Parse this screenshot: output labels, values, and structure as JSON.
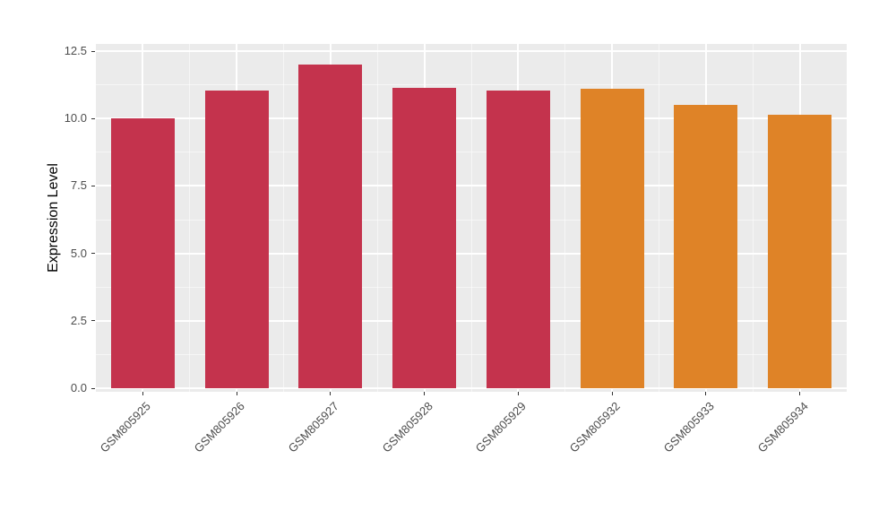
{
  "chart": {
    "panel_bg": "#EBEBEB",
    "grid_color": "#FFFFFF",
    "axis_text_color": "#4D4D4D",
    "red_accent": "#C4334D",
    "orange_accent": "#DF8327"
  },
  "chart_data": {
    "type": "bar",
    "title": "",
    "xlabel": "",
    "ylabel": "Expression Level",
    "categories": [
      "GSM805925",
      "GSM805926",
      "GSM805927",
      "GSM805928",
      "GSM805929",
      "GSM805932",
      "GSM805933",
      "GSM805934"
    ],
    "values": [
      10.0,
      11.05,
      12.0,
      11.15,
      11.05,
      11.1,
      10.5,
      10.15
    ],
    "bar_colors": [
      "#C4334D",
      "#C4334D",
      "#C4334D",
      "#C4334D",
      "#C4334D",
      "#DF8327",
      "#DF8327",
      "#DF8327"
    ],
    "ylim": [
      0,
      12.5
    ],
    "yticks": [
      0.0,
      2.5,
      5.0,
      7.5,
      10.0,
      12.5
    ],
    "ytick_labels": [
      "0.0",
      "2.5",
      "5.0",
      "7.5",
      "10.0",
      "12.5"
    ],
    "grid": true,
    "legend": "none"
  }
}
